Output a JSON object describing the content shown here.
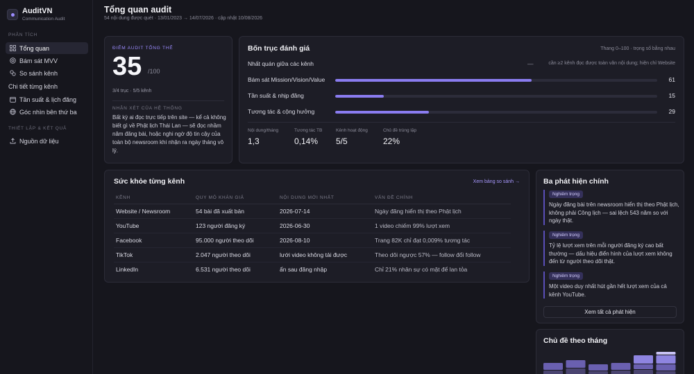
{
  "brand": {
    "name": "AuditVN",
    "subtitle": "Communication Audit"
  },
  "sidebar": {
    "section_analysis": "PHÂN TÍCH",
    "section_setup": "THIẾT LẬP & KẾT QUẢ",
    "items": [
      {
        "label": "Tổng quan",
        "icon": "grid-icon",
        "active": true
      },
      {
        "label": "Bám sát MVV",
        "icon": "target-icon"
      },
      {
        "label": "So sánh kênh",
        "icon": "compare-icon"
      },
      {
        "label": "Chi tiết từng kênh",
        "icon": ""
      },
      {
        "label": "Tần suất & lịch đăng",
        "icon": "calendar-icon"
      },
      {
        "label": "Góc nhìn bên thứ ba",
        "icon": "globe-icon"
      }
    ],
    "setup_items": [
      {
        "label": "Nguồn dữ liệu",
        "icon": "upload-icon"
      }
    ]
  },
  "header": {
    "title": "Tổng quan audit",
    "subtitle": "54 nội dung được quét · 13/01/2023 → 14/07/2026 · cập nhật 10/08/2026"
  },
  "score": {
    "label": "ĐIỂM AUDIT TỔNG THỂ",
    "value": "35",
    "max": "/100",
    "meta": "3/4 trục · 5/5 kênh",
    "review_label": "NHẬN XÉT CỦA HỆ THỐNG",
    "review_text": "Bất kỳ ai đọc trực tiếp trên site — kể cả không biết gì về Phật lịch Thái Lan — sẽ đọc nhầm năm đăng bài, hoặc nghi ngờ độ tin cậy của toàn bộ newsroom khi nhận ra ngày tháng vô lý."
  },
  "axes": {
    "title": "Bốn trục đánh giá",
    "note": "Thang 0–100 · trọng số bằng nhau",
    "rows": [
      {
        "name": "Nhất quán giữa các kênh",
        "value": null,
        "dash": "—",
        "na_note": "cần ≥2 kênh đọc được toàn văn nội dung; hiện chỉ Website"
      },
      {
        "name": "Bám sát Mission/Vision/Value",
        "value": 61,
        "label": "61"
      },
      {
        "name": "Tần suất & nhịp đăng",
        "value": 15,
        "label": "15"
      },
      {
        "name": "Tương tác & cộng hưởng",
        "value": 29,
        "label": "29"
      }
    ],
    "stats": [
      {
        "label": "Nội dung/tháng",
        "value": "1,3"
      },
      {
        "label": "Tương tác TB",
        "value": "0,14%"
      },
      {
        "label": "Kênh hoạt động",
        "value": "5/5"
      },
      {
        "label": "Chủ đề trùng lặp",
        "value": "22%"
      }
    ]
  },
  "channels": {
    "title": "Sức khỏe từng kênh",
    "link": "Xem bảng so sánh →",
    "headers": [
      "KÊNH",
      "QUY MÔ KHÁN GIẢ",
      "NỘI DUNG MỚI NHẤT",
      "VẤN ĐỀ CHÍNH"
    ],
    "rows": [
      [
        "Website / Newsroom",
        "54 bài đã xuất bản",
        "2026-07-14",
        "Ngày đăng hiển thị theo Phật lịch"
      ],
      [
        "YouTube",
        "123 người đăng ký",
        "2026-06-30",
        "1 video chiếm 99% lượt xem"
      ],
      [
        "Facebook",
        "95.000 người theo dõi",
        "2026-08-10",
        "Trang 82K chỉ đạt 0,009% tương tác"
      ],
      [
        "TikTok",
        "2.047 người theo dõi",
        "lưới video không tải được",
        "Theo dõi ngược 57% — follow đổi follow"
      ],
      [
        "LinkedIn",
        "6.531 người theo dõi",
        "ẩn sau đăng nhập",
        "Chỉ 21% nhân sự có mặt để lan tỏa"
      ]
    ]
  },
  "findings": {
    "title": "Ba phát hiện chính",
    "items": [
      {
        "badge": "Nghiêm trọng",
        "text": "Ngày đăng bài trên newsroom hiển thị theo Phật lịch, không phải Công lịch — sai lệch 543 năm so với ngày thật."
      },
      {
        "badge": "Nghiêm trọng",
        "text": "Tỷ lệ lượt xem trên mỗi người đăng ký cao bất thường — dấu hiệu điển hình của lượt xem không đến từ người theo dõi thật."
      },
      {
        "badge": "Nghiêm trọng",
        "text": "Một video duy nhất hút gần hết lượt xem của cả kênh YouTube."
      }
    ],
    "button": "Xem tất cả phát hiện"
  },
  "topics": {
    "title": "Chủ đề theo tháng",
    "colors": [
      "#4a4470",
      "#6a60b0",
      "#8e84e0",
      "#c8c2f4"
    ]
  },
  "chart_data": {
    "type": "bar",
    "stacked": true,
    "categories": [
      "",
      "",
      "",
      "",
      "",
      ""
    ],
    "series": [
      {
        "values": [
          13,
          16,
          12,
          13,
          14,
          12
        ]
      },
      {
        "values": [
          11,
          12,
          10,
          11,
          8,
          10
        ]
      },
      {
        "values": [
          0,
          0,
          0,
          0,
          13,
          13
        ]
      },
      {
        "values": [
          0,
          0,
          0,
          0,
          0,
          5
        ]
      }
    ],
    "ylim": [
      0,
      40
    ]
  }
}
